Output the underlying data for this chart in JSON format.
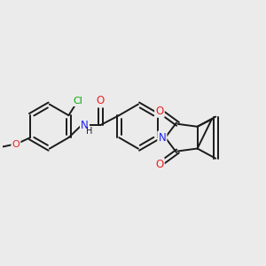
{
  "bg_color": "#ebebeb",
  "bond_color": "#1a1a1a",
  "N_color": "#2020ee",
  "O_color": "#ee2020",
  "Cl_color": "#00aa00",
  "bond_width": 1.4,
  "font_size_atoms": 8.5,
  "fig_bg": "#ebebeb",
  "xlim": [
    0,
    10
  ],
  "ylim": [
    0,
    7.5
  ]
}
